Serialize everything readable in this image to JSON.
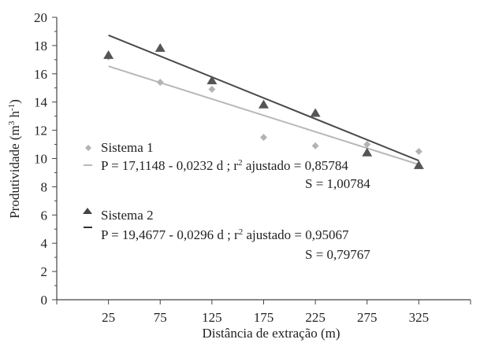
{
  "chart_data": {
    "type": "scatter",
    "xlabel": "Distância de extração (m)",
    "ylabel_main": "Produtividade (m",
    "ylabel_sup1": "3",
    "ylabel_mid": " h",
    "ylabel_sup2": "-1",
    "ylabel_end": ")",
    "x_categories": [
      25,
      75,
      125,
      175,
      225,
      275,
      325
    ],
    "xlim": [
      -25,
      375
    ],
    "ylim": [
      0,
      20
    ],
    "y_ticks": [
      0,
      2,
      4,
      6,
      8,
      10,
      12,
      14,
      16,
      18,
      20
    ],
    "grid": false,
    "series": [
      {
        "name": "Sistema 1",
        "marker": "diamond",
        "color": "#b3b3b3",
        "line_color": "#b8b8b8",
        "x": [
          25,
          75,
          125,
          175,
          225,
          275,
          325
        ],
        "y": [
          17.2,
          15.4,
          14.9,
          11.5,
          10.9,
          11.0,
          10.5
        ],
        "fit": {
          "intercept": 17.1148,
          "slope": -0.0232
        },
        "equation": "P = 17,1148 - 0,0232 d ; r",
        "r2_sup": "2",
        "r2_rest": " ajustado = 0,85784",
        "s_text": "S = 1,00784"
      },
      {
        "name": "Sistema 2",
        "marker": "triangle",
        "color": "#555555",
        "line_color": "#4a4a4a",
        "x": [
          25,
          75,
          125,
          175,
          225,
          275,
          325
        ],
        "y": [
          17.3,
          17.8,
          15.5,
          13.8,
          13.2,
          10.4,
          9.5
        ],
        "fit": {
          "intercept": 19.4677,
          "slope": -0.0296
        },
        "equation": "P = 19,4677 - 0,0296 d ; r",
        "r2_sup": "2",
        "r2_rest": " ajustado = 0,95067",
        "s_text": "S = 0,79767"
      }
    ]
  }
}
